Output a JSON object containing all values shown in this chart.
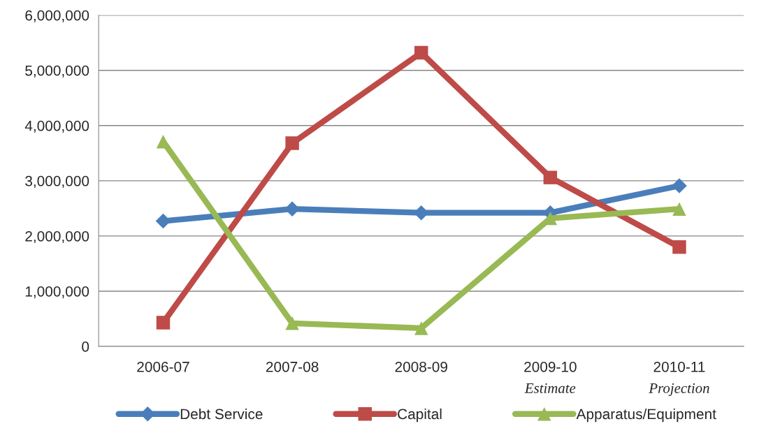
{
  "chart_data": {
    "type": "line",
    "categories": [
      "2006-07",
      "2007-08",
      "2008-09",
      "2009-10\nEstimate",
      "2010-11\nProjection"
    ],
    "series": [
      {
        "name": "Debt Service",
        "color": "#4a7ebb",
        "marker": "diamond",
        "values": [
          2270000,
          2490000,
          2420000,
          2420000,
          2910000
        ]
      },
      {
        "name": "Capital",
        "color": "#be4b48",
        "marker": "square",
        "values": [
          430000,
          3680000,
          5320000,
          3060000,
          1800000
        ]
      },
      {
        "name": "Apparatus/Equipment",
        "color": "#98b954",
        "marker": "triangle",
        "values": [
          3710000,
          420000,
          330000,
          2320000,
          2490000
        ]
      }
    ],
    "ylim": [
      0,
      6000000
    ],
    "yticks": [
      {
        "value": 0,
        "label": "0"
      },
      {
        "value": 1000000,
        "label": "1,000,000"
      },
      {
        "value": 2000000,
        "label": "2,000,000"
      },
      {
        "value": 3000000,
        "label": "3,000,000"
      },
      {
        "value": 4000000,
        "label": "4,000,000"
      },
      {
        "value": 5000000,
        "label": "5,000,000"
      },
      {
        "value": 6000000,
        "label": "6,000,000"
      }
    ],
    "grid": "y",
    "legend": "bottom",
    "line_style": "solid"
  }
}
